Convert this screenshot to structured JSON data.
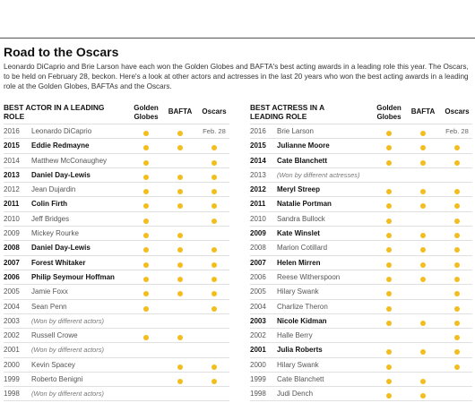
{
  "title": "Road to the Oscars",
  "intro": "Leonardo DiCaprio and Brie Larson have each won the Golden Globes and BAFTA's best acting awards in a leading role this year. The Oscars, to be held on February 28, beckon. Here's a look at other actors and actresses in the last 20 years who won the best acting awards in a leading role at the Golden Globes, BAFTAs and the Oscars.",
  "colors": {
    "dot": "#f2bd1d",
    "rule": "#e0e0e0"
  },
  "columns": {
    "golden_globes": "Golden Globes",
    "bafta": "BAFTA",
    "oscars": "Oscars"
  },
  "actor": {
    "header": "BEST ACTOR IN A LEADING ROLE",
    "rows": [
      {
        "year": "2016",
        "name": "Leonardo DiCaprio",
        "gg": true,
        "bafta": true,
        "oscars": "Feb. 28",
        "bold": false
      },
      {
        "year": "2015",
        "name": "Eddie Redmayne",
        "gg": true,
        "bafta": true,
        "oscars": true,
        "bold": true
      },
      {
        "year": "2014",
        "name": "Matthew McConaughey",
        "gg": true,
        "bafta": false,
        "oscars": true,
        "bold": false
      },
      {
        "year": "2013",
        "name": "Daniel Day-Lewis",
        "gg": true,
        "bafta": true,
        "oscars": true,
        "bold": true
      },
      {
        "year": "2012",
        "name": "Jean Dujardin",
        "gg": true,
        "bafta": true,
        "oscars": true,
        "bold": false
      },
      {
        "year": "2011",
        "name": "Colin Firth",
        "gg": true,
        "bafta": true,
        "oscars": true,
        "bold": true
      },
      {
        "year": "2010",
        "name": "Jeff Bridges",
        "gg": true,
        "bafta": false,
        "oscars": true,
        "bold": false
      },
      {
        "year": "2009",
        "name": "Mickey Rourke",
        "gg": true,
        "bafta": true,
        "oscars": false,
        "bold": false
      },
      {
        "year": "2008",
        "name": "Daniel Day-Lewis",
        "gg": true,
        "bafta": true,
        "oscars": true,
        "bold": true
      },
      {
        "year": "2007",
        "name": "Forest Whitaker",
        "gg": true,
        "bafta": true,
        "oscars": true,
        "bold": true
      },
      {
        "year": "2006",
        "name": "Philip Seymour Hoffman",
        "gg": true,
        "bafta": true,
        "oscars": true,
        "bold": true
      },
      {
        "year": "2005",
        "name": "Jamie Foxx",
        "gg": true,
        "bafta": true,
        "oscars": true,
        "bold": false
      },
      {
        "year": "2004",
        "name": "Sean Penn",
        "gg": true,
        "bafta": false,
        "oscars": true,
        "bold": false
      },
      {
        "year": "2003",
        "name": "(Won by different actors)",
        "gg": false,
        "bafta": false,
        "oscars": false,
        "bold": false,
        "note": true
      },
      {
        "year": "2002",
        "name": "Russell Crowe",
        "gg": true,
        "bafta": true,
        "oscars": false,
        "bold": false
      },
      {
        "year": "2001",
        "name": "(Won by different actors)",
        "gg": false,
        "bafta": false,
        "oscars": false,
        "bold": false,
        "note": true
      },
      {
        "year": "2000",
        "name": "Kevin Spacey",
        "gg": false,
        "bafta": true,
        "oscars": true,
        "bold": false
      },
      {
        "year": "1999",
        "name": "Roberto Benigni",
        "gg": false,
        "bafta": true,
        "oscars": true,
        "bold": false
      },
      {
        "year": "1998",
        "name": "(Won by different actors)",
        "gg": false,
        "bafta": false,
        "oscars": false,
        "bold": false,
        "note": true
      }
    ]
  },
  "actress": {
    "header": "BEST ACTRESS IN A LEADING ROLE",
    "rows": [
      {
        "year": "2016",
        "name": "Brie Larson",
        "gg": true,
        "bafta": true,
        "oscars": "Feb. 28",
        "bold": false
      },
      {
        "year": "2015",
        "name": "Julianne Moore",
        "gg": true,
        "bafta": true,
        "oscars": true,
        "bold": true
      },
      {
        "year": "2014",
        "name": "Cate Blanchett",
        "gg": true,
        "bafta": true,
        "oscars": true,
        "bold": true
      },
      {
        "year": "2013",
        "name": "(Won by different actresses)",
        "gg": false,
        "bafta": false,
        "oscars": false,
        "bold": false,
        "note": true
      },
      {
        "year": "2012",
        "name": "Meryl Streep",
        "gg": true,
        "bafta": true,
        "oscars": true,
        "bold": true
      },
      {
        "year": "2011",
        "name": "Natalie Portman",
        "gg": true,
        "bafta": true,
        "oscars": true,
        "bold": true
      },
      {
        "year": "2010",
        "name": "Sandra Bullock",
        "gg": true,
        "bafta": false,
        "oscars": true,
        "bold": false
      },
      {
        "year": "2009",
        "name": "Kate Winslet",
        "gg": true,
        "bafta": true,
        "oscars": true,
        "bold": true
      },
      {
        "year": "2008",
        "name": "Marion Cotillard",
        "gg": true,
        "bafta": true,
        "oscars": true,
        "bold": false
      },
      {
        "year": "2007",
        "name": "Helen Mirren",
        "gg": true,
        "bafta": true,
        "oscars": true,
        "bold": true
      },
      {
        "year": "2006",
        "name": "Reese Witherspoon",
        "gg": true,
        "bafta": true,
        "oscars": true,
        "bold": false
      },
      {
        "year": "2005",
        "name": "Hilary Swank",
        "gg": true,
        "bafta": false,
        "oscars": true,
        "bold": false
      },
      {
        "year": "2004",
        "name": "Charlize Theron",
        "gg": true,
        "bafta": false,
        "oscars": true,
        "bold": false
      },
      {
        "year": "2003",
        "name": "Nicole Kidman",
        "gg": true,
        "bafta": true,
        "oscars": true,
        "bold": true
      },
      {
        "year": "2002",
        "name": "Halle Berry",
        "gg": false,
        "bafta": false,
        "oscars": true,
        "bold": false
      },
      {
        "year": "2001",
        "name": "Julia Roberts",
        "gg": true,
        "bafta": true,
        "oscars": true,
        "bold": true
      },
      {
        "year": "2000",
        "name": "Hilary Swank",
        "gg": true,
        "bafta": false,
        "oscars": true,
        "bold": false
      },
      {
        "year": "1999",
        "name": "Cate Blanchett",
        "gg": true,
        "bafta": true,
        "oscars": false,
        "bold": false
      },
      {
        "year": "1998",
        "name": "Judi Dench",
        "gg": true,
        "bafta": true,
        "oscars": false,
        "bold": false
      }
    ]
  }
}
